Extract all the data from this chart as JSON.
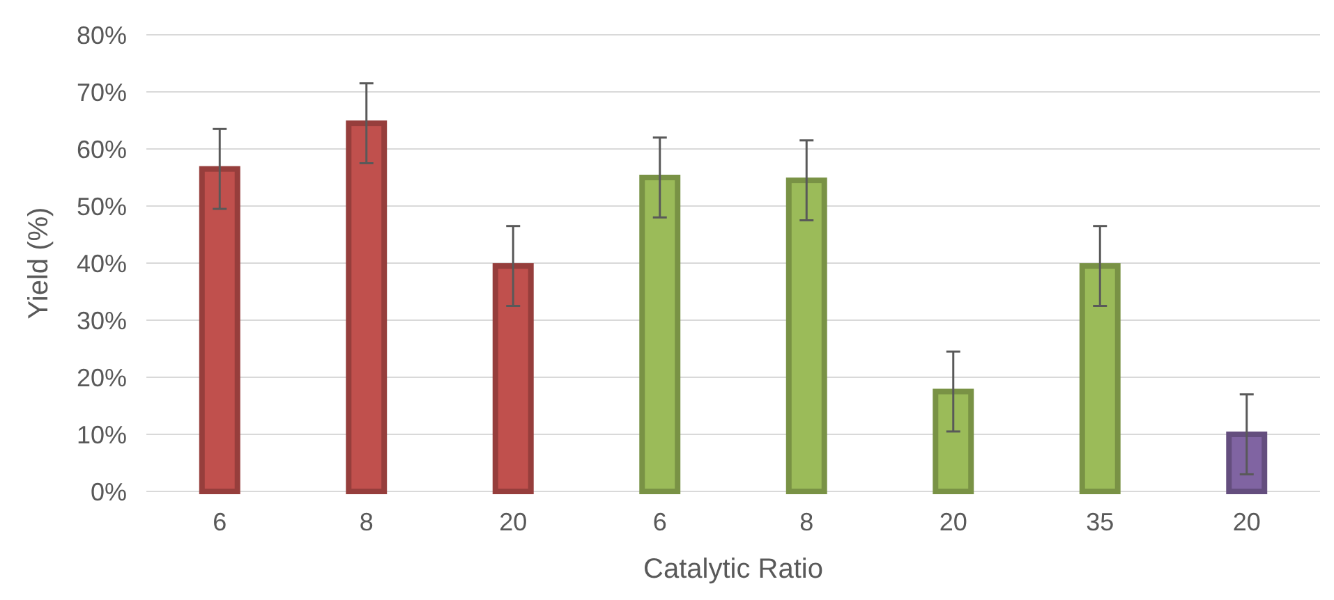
{
  "chart_data": {
    "type": "bar",
    "xlabel": "Catalytic Ratio",
    "ylabel": "Yield (%)",
    "categories": [
      "6",
      "8",
      "20",
      "6",
      "8",
      "20",
      "35",
      "20"
    ],
    "values": [
      56.5,
      64.5,
      39.5,
      55,
      54.5,
      17.5,
      39.5,
      10
    ],
    "errors": [
      7,
      7,
      7,
      7,
      7,
      7,
      7,
      7
    ],
    "colors": [
      "#c0504d",
      "#c0504d",
      "#c0504d",
      "#9bbb59",
      "#9bbb59",
      "#9bbb59",
      "#9bbb59",
      "#8064a2"
    ],
    "ylim": [
      0,
      80
    ],
    "yticks": [
      {
        "value": 0,
        "label": "0%"
      },
      {
        "value": 10,
        "label": "10%"
      },
      {
        "value": 20,
        "label": "20%"
      },
      {
        "value": 30,
        "label": "30%"
      },
      {
        "value": 40,
        "label": "40%"
      },
      {
        "value": 50,
        "label": "50%"
      },
      {
        "value": 60,
        "label": "60%"
      },
      {
        "value": 70,
        "label": "70%"
      },
      {
        "value": 80,
        "label": "80%"
      }
    ],
    "grid": "y"
  }
}
